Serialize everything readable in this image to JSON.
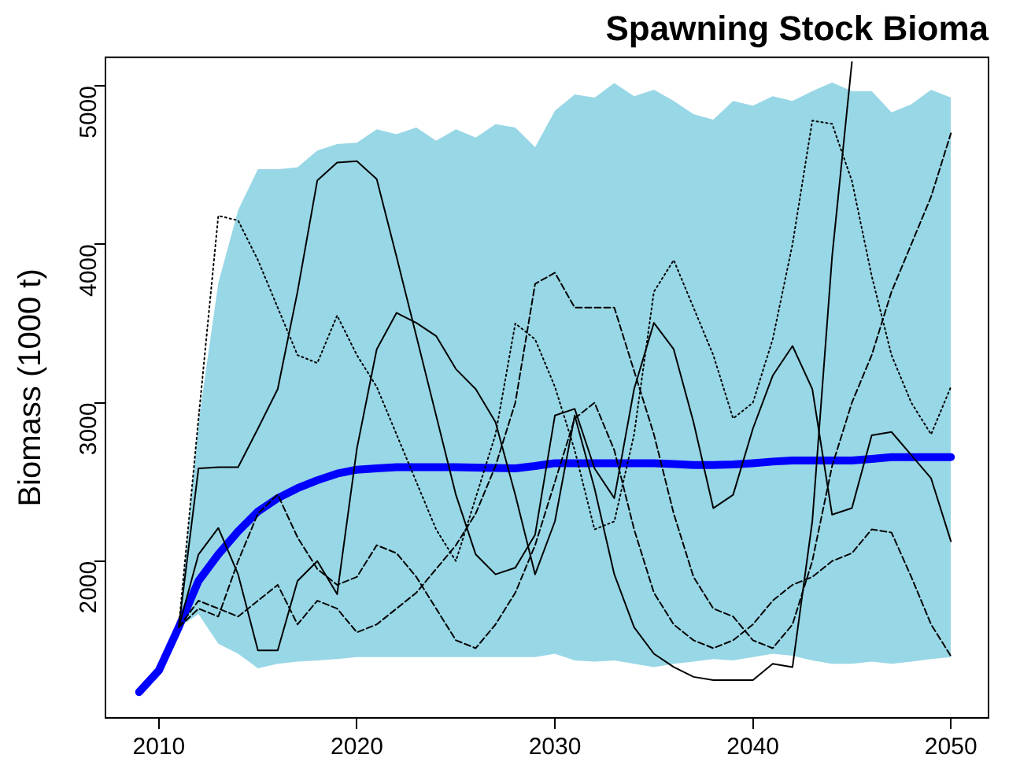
{
  "chart_data": {
    "type": "line",
    "title": "Spawning Stock Bioma",
    "ylabel": "Biomass (1000 t)",
    "x": [
      2009,
      2010,
      2011,
      2012,
      2013,
      2014,
      2015,
      2016,
      2017,
      2018,
      2019,
      2020,
      2021,
      2022,
      2023,
      2024,
      2025,
      2026,
      2027,
      2028,
      2029,
      2030,
      2031,
      2032,
      2033,
      2034,
      2035,
      2036,
      2037,
      2038,
      2039,
      2040,
      2041,
      2042,
      2043,
      2044,
      2045,
      2046,
      2047,
      2048,
      2049,
      2050
    ],
    "xlim": [
      2007.3,
      2051.9
    ],
    "xticks": [
      2010,
      2020,
      2030,
      2040,
      2050
    ],
    "ylim": [
      1010,
      5180
    ],
    "yticks": [
      2000,
      3000,
      4000,
      5000
    ],
    "grid": false,
    "legend": false,
    "marker": "none",
    "series": [
      {
        "color": "#000000",
        "line_style": "solid",
        "values": [
          null,
          null,
          1582,
          2585,
          2593,
          2593,
          2836,
          3086,
          3700,
          4403,
          4516,
          4524,
          4411,
          3922,
          3421,
          2919,
          2418,
          2042,
          1916,
          1958,
          2167,
          2919,
          2961,
          2585,
          2397,
          3086,
          3504,
          3337,
          2877,
          2334,
          2418,
          2836,
          3170,
          3358,
          3086,
          2293,
          2334,
          2794,
          2815,
          2669,
          2522,
          2125
        ]
      },
      {
        "color": "#000000",
        "line_style": "solid",
        "values": [
          null,
          null,
          1582,
          2042,
          2209,
          1916,
          1436,
          1436,
          1875,
          2000,
          1791,
          2711,
          3337,
          3567,
          3504,
          3421,
          3212,
          3086,
          2877,
          2418,
          1916,
          2251,
          2919,
          2460,
          1916,
          1582,
          1415,
          1331,
          1269,
          1248,
          1248,
          1248,
          1352,
          1331,
          2251,
          3922,
          5150,
          null,
          null,
          null,
          null,
          null
        ]
      },
      {
        "color": "#000000",
        "line_style": "dashed",
        "values": [
          null,
          null,
          1582,
          1700,
          1650,
          2000,
          2300,
          2420,
          2150,
          1950,
          1850,
          1900,
          2100,
          2050,
          1900,
          1700,
          1500,
          1450,
          1600,
          1800,
          2100,
          2500,
          2900,
          3000,
          2700,
          2200,
          1800,
          1600,
          1500,
          1450,
          1500,
          1600,
          1750,
          1850,
          1900,
          2000,
          2050,
          2200,
          2180,
          1900,
          1600,
          1400
        ]
      },
      {
        "color": "#000000",
        "line_style": "dotted",
        "values": [
          null,
          null,
          1582,
          2900,
          4180,
          4150,
          3900,
          3600,
          3300,
          3250,
          3550,
          3300,
          3100,
          2800,
          2500,
          2200,
          2000,
          2400,
          2800,
          3500,
          3400,
          3100,
          2700,
          2200,
          2250,
          2800,
          3700,
          3900,
          3600,
          3300,
          2900,
          3000,
          3400,
          4000,
          4780,
          4760,
          4400,
          3800,
          3300,
          3000,
          2800,
          3100
        ]
      },
      {
        "color": "#000000",
        "line_style": "dashed",
        "values": [
          null,
          null,
          1582,
          1750,
          1700,
          1650,
          1750,
          1850,
          1600,
          1750,
          1700,
          1550,
          1600,
          1700,
          1800,
          1950,
          2100,
          2300,
          2600,
          3000,
          3750,
          3820,
          3600,
          3600,
          3600,
          3200,
          2800,
          2300,
          1900,
          1700,
          1650,
          1500,
          1450,
          1600,
          2000,
          2600,
          3000,
          3300,
          3700,
          4000,
          4300,
          4700
        ]
      },
      {
        "color": "#0000ff",
        "line_style": "solid",
        "values": [
          1173,
          1310,
          1582,
          1875,
          2042,
          2188,
          2313,
          2397,
          2460,
          2510,
          2552,
          2577,
          2585,
          2593,
          2593,
          2593,
          2593,
          2590,
          2588,
          2585,
          2600,
          2618,
          2618,
          2618,
          2618,
          2618,
          2618,
          2612,
          2606,
          2606,
          2610,
          2618,
          2628,
          2635,
          2635,
          2635,
          2635,
          2645,
          2656,
          2656,
          2656,
          2656
        ],
        "lower": [
          null,
          null,
          1582,
          1666,
          1478,
          1415,
          1323,
          1352,
          1365,
          1373,
          1382,
          1394,
          1394,
          1394,
          1394,
          1394,
          1394,
          1394,
          1394,
          1394,
          1394,
          1415,
          1373,
          1365,
          1373,
          1352,
          1331,
          1352,
          1365,
          1382,
          1373,
          1394,
          1415,
          1402,
          1373,
          1352,
          1352,
          1365,
          1352,
          1365,
          1382,
          1394
        ],
        "upper": [
          null,
          null,
          1582,
          2877,
          3755,
          4215,
          4474,
          4474,
          4486,
          4591,
          4633,
          4641,
          4725,
          4695,
          4737,
          4653,
          4725,
          4674,
          4758,
          4737,
          4612,
          4842,
          4946,
          4925,
          5017,
          4934,
          4975,
          4904,
          4821,
          4787,
          4904,
          4875,
          4934,
          4904,
          4967,
          5021,
          4967,
          4967,
          4833,
          4883,
          4975,
          4925
        ]
      }
    ]
  }
}
